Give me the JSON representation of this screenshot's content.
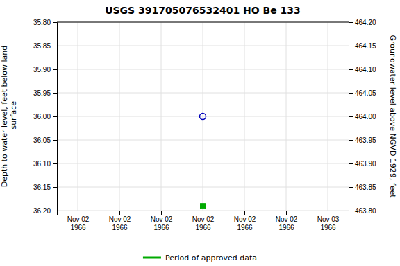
{
  "chart_data": {
    "type": "scatter",
    "title": "USGS 391705076532401 HO Be 133",
    "ylabel": "Depth to water level, feet below land\n surface",
    "y2label": "Groundwater level above NGVD 1929, feet",
    "categories": [
      "Nov 02\n1966",
      "Nov 02\n1966",
      "Nov 02\n1966",
      "Nov 02\n1966",
      "Nov 02\n1966",
      "Nov 02\n1966",
      "Nov 03\n1966"
    ],
    "series": [
      {
        "color": "#0000bb",
        "marker": "circle",
        "values": [
          null,
          null,
          null,
          36.0,
          null,
          null,
          null
        ]
      },
      {
        "name": "Period of approved data",
        "color": "#00aa00",
        "marker": "square",
        "values": [
          null,
          null,
          null,
          36.19,
          null,
          null,
          null
        ]
      }
    ],
    "ylim": [
      36.2,
      35.8
    ],
    "yticks": [
      {
        "value": 35.8,
        "label": "35.80"
      },
      {
        "value": 35.85,
        "label": "35.85"
      },
      {
        "value": 35.9,
        "label": "35.90"
      },
      {
        "value": 35.95,
        "label": "35.95"
      },
      {
        "value": 36.0,
        "label": "36.00"
      },
      {
        "value": 36.05,
        "label": "36.05"
      },
      {
        "value": 36.1,
        "label": "36.10"
      },
      {
        "value": 36.15,
        "label": "36.15"
      },
      {
        "value": 36.2,
        "label": "36.20"
      }
    ],
    "y2lim": [
      463.8,
      464.2
    ],
    "y2ticks": [
      {
        "value": 463.8,
        "label": "463.80"
      },
      {
        "value": 463.85,
        "label": "463.85"
      },
      {
        "value": 463.9,
        "label": "463.90"
      },
      {
        "value": 463.95,
        "label": "463.95"
      },
      {
        "value": 464.0,
        "label": "464.00"
      },
      {
        "value": 464.05,
        "label": "464.05"
      },
      {
        "value": 464.1,
        "label": "464.10"
      },
      {
        "value": 464.15,
        "label": "464.15"
      },
      {
        "value": 464.2,
        "label": "464.20"
      }
    ],
    "grid": true,
    "legend": "bottom"
  }
}
